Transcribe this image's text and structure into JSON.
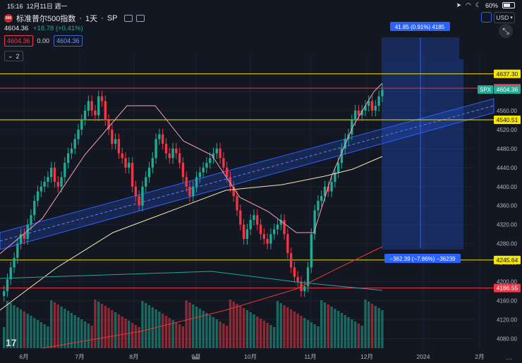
{
  "status": {
    "time": "15:16",
    "date": "12月11日 週一",
    "battery": "60%"
  },
  "header": {
    "symbol": "标准普尔500指数",
    "interval": "1天",
    "exchange": "SP",
    "logo_text": "500",
    "separator": "·",
    "last_price": "4604.36",
    "change": "+18.78 (+0.41%)",
    "sell_price": "4604.36",
    "spread": "0.00",
    "buy_price": "4604.36",
    "indicators_count": "2",
    "currency": "USD"
  },
  "price_axis": {
    "ticks": [
      "4600.00",
      "4560.00",
      "4520.00",
      "4480.00",
      "4440.00",
      "4400.00",
      "4360.00",
      "4320.00",
      "4280.00",
      "4240.00",
      "4200.00",
      "4160.00",
      "4120.00",
      "4080.00"
    ],
    "tags": [
      {
        "label": "4637.30",
        "kind": "yellow"
      },
      {
        "label": "4607.07",
        "kind": "red"
      },
      {
        "label": "4604.36",
        "kind": "green"
      },
      {
        "label": "4540.51",
        "kind": "yellow"
      },
      {
        "label": "4245.64",
        "kind": "yellow"
      },
      {
        "label": "4186.55",
        "kind": "red"
      }
    ],
    "spx_label": "SPX"
  },
  "time_axis": {
    "ticks": [
      "6月",
      "7月",
      "8月",
      "9月",
      "10月",
      "11月",
      "12月",
      "2024",
      "2月"
    ]
  },
  "annotations": {
    "up_label": "41.85 (0.91%) 4185",
    "down_label": "−362.39 (−7.86%) −36239"
  },
  "colors": {
    "up": "#22ab94",
    "down": "#f23645",
    "background": "#131722",
    "yellow_line": "#f7e600",
    "channel": "#2962ff",
    "ma_pink": "#f3a3b8",
    "ma_cream": "#f2e5b6",
    "ma_red": "#e53935",
    "ma_teal": "#26a69a"
  },
  "chart_data": {
    "type": "candlestick",
    "ylim": [
      4060,
      4680
    ],
    "x": [
      "6月",
      "7月",
      "8月",
      "9月",
      "10月",
      "11月",
      "12月"
    ],
    "close_series": [
      4180,
      4205,
      4230,
      4250,
      4280,
      4300,
      4290,
      4320,
      4340,
      4370,
      4390,
      4400,
      4410,
      4420,
      4440,
      4410,
      4400,
      4420,
      4450,
      4470,
      4480,
      4500,
      4520,
      4540,
      4560,
      4580,
      4560,
      4550,
      4590,
      4580,
      4540,
      4520,
      4490,
      4500,
      4470,
      4460,
      4440,
      4450,
      4400,
      4380,
      4360,
      4400,
      4420,
      4440,
      4460,
      4500,
      4510,
      4490,
      4470,
      4460,
      4480,
      4470,
      4450,
      4420,
      4400,
      4380,
      4400,
      4420,
      4430,
      4440,
      4450,
      4460,
      4470,
      4480,
      4460,
      4440,
      4420,
      4400,
      4380,
      4350,
      4320,
      4290,
      4310,
      4330,
      4340,
      4320,
      4300,
      4290,
      4280,
      4300,
      4310,
      4320,
      4330,
      4300,
      4260,
      4230,
      4210,
      4200,
      4180,
      4190,
      4230,
      4300,
      4350,
      4370,
      4380,
      4400,
      4390,
      4410,
      4430,
      4450,
      4480,
      4500,
      4510,
      4540,
      4560,
      4550,
      4560,
      4570,
      4580,
      4560,
      4570,
      4590,
      4604
    ]
  }
}
